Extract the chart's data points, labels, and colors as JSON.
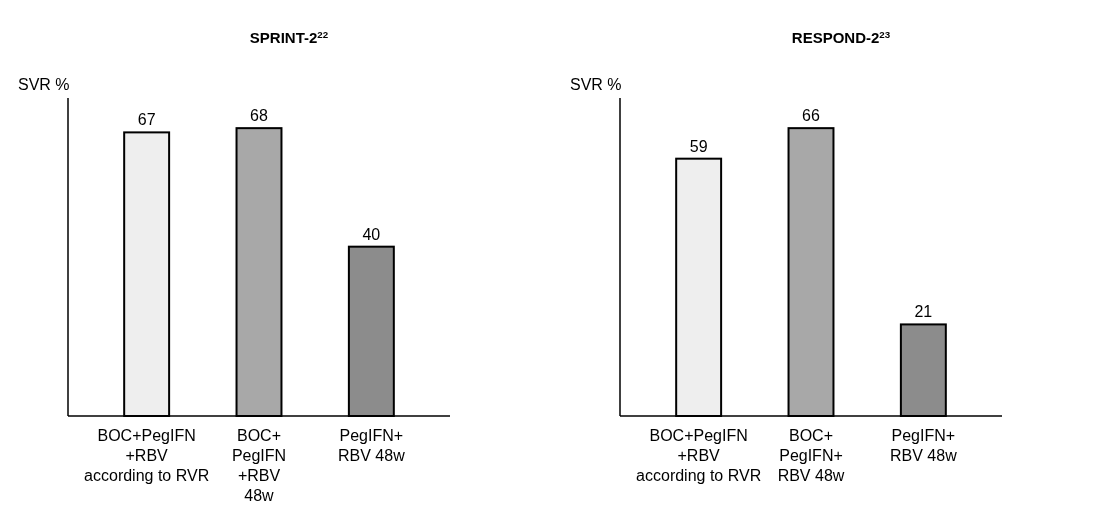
{
  "chart_data": [
    {
      "type": "bar",
      "title": "SPRINT-2$^{22}$",
      "ylabel": "SVR %",
      "categories": [
        "BOC+PegIFN\n+RBV\naccording to RVR",
        "BOC+\nPegIFN\n+RBV\n48w",
        "PegIFN+\nRBV 48w"
      ],
      "values": [
        67,
        68,
        40
      ],
      "colors": [
        "#eeeeee",
        "#a8a8a8",
        "#8c8c8c"
      ],
      "data_labels": true
    },
    {
      "type": "bar",
      "title": "RESPOND-2$^{23}$",
      "ylabel": "SVR %",
      "categories": [
        "BOC+PegIFN\n+RBV\naccording to RVR",
        "BOC+\nPegIFN+\nRBV 48w",
        "PegIFN+\nRBV 48w"
      ],
      "values": [
        59,
        66,
        21
      ],
      "colors": [
        "#eeeeee",
        "#a8a8a8",
        "#8c8c8c"
      ],
      "data_labels": true
    }
  ]
}
